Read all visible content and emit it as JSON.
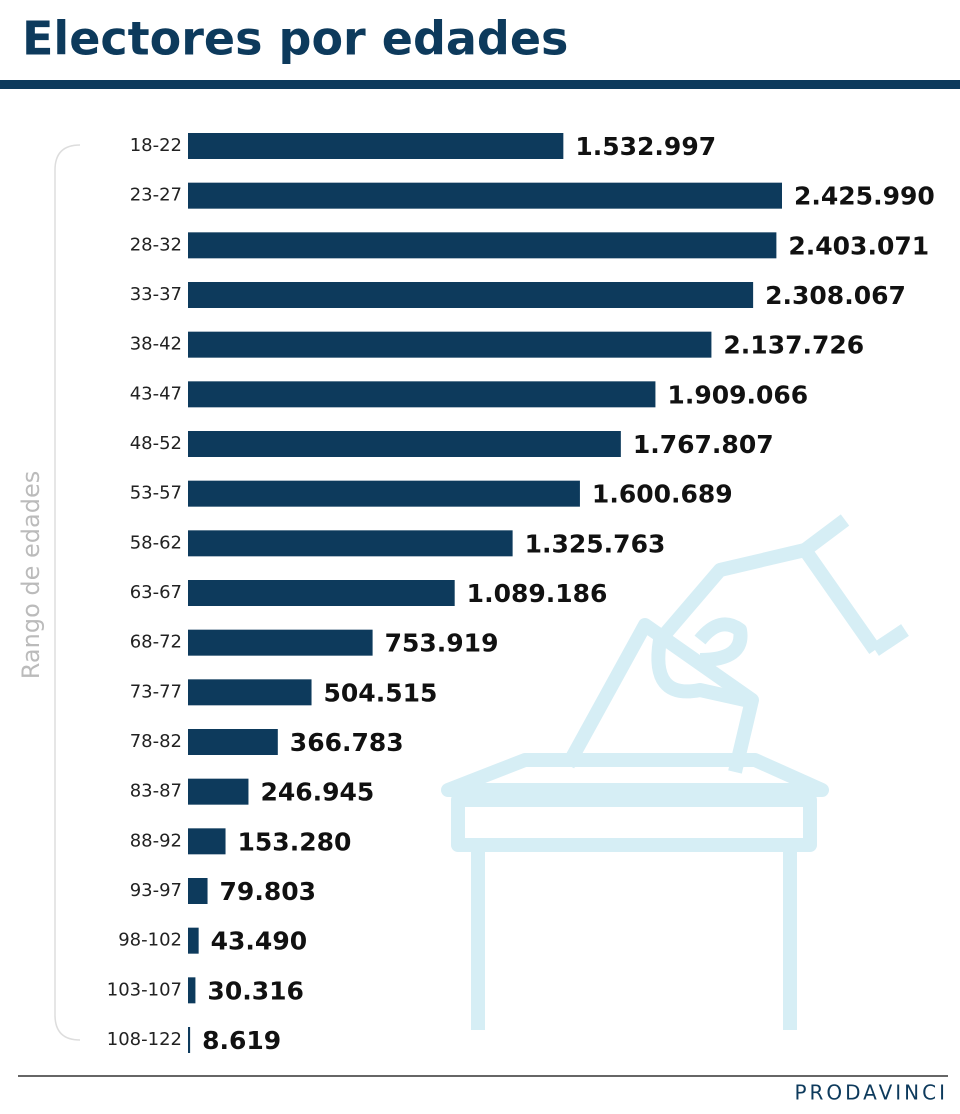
{
  "chart_data": {
    "type": "bar",
    "orientation": "horizontal",
    "title": "Electores por edades",
    "y_label": "Rango de edades",
    "brand": "PRODAVINCI",
    "color": "#0d3a5c",
    "categories": [
      "18-22",
      "23-27",
      "28-32",
      "33-37",
      "38-42",
      "43-47",
      "48-52",
      "53-57",
      "58-62",
      "63-67",
      "68-72",
      "73-77",
      "78-82",
      "83-87",
      "88-92",
      "93-97",
      "98-102",
      "103-107",
      "108-122"
    ],
    "values": [
      1532997,
      2425990,
      2403071,
      2308067,
      2137726,
      1909066,
      1767807,
      1600689,
      1325763,
      1089186,
      753919,
      504515,
      366783,
      246945,
      153280,
      79803,
      43490,
      30316,
      8619
    ],
    "value_labels": [
      "1.532.997",
      "2.425.990",
      "2.403.071",
      "2.308.067",
      "2.137.726",
      "1.909.066",
      "1.767.807",
      "1.600.689",
      "1.325.763",
      "1.089.186",
      "753.919",
      "504.515",
      "366.783",
      "246.945",
      "153.280",
      "79.803",
      "43.490",
      "30.316",
      "8.619"
    ]
  }
}
